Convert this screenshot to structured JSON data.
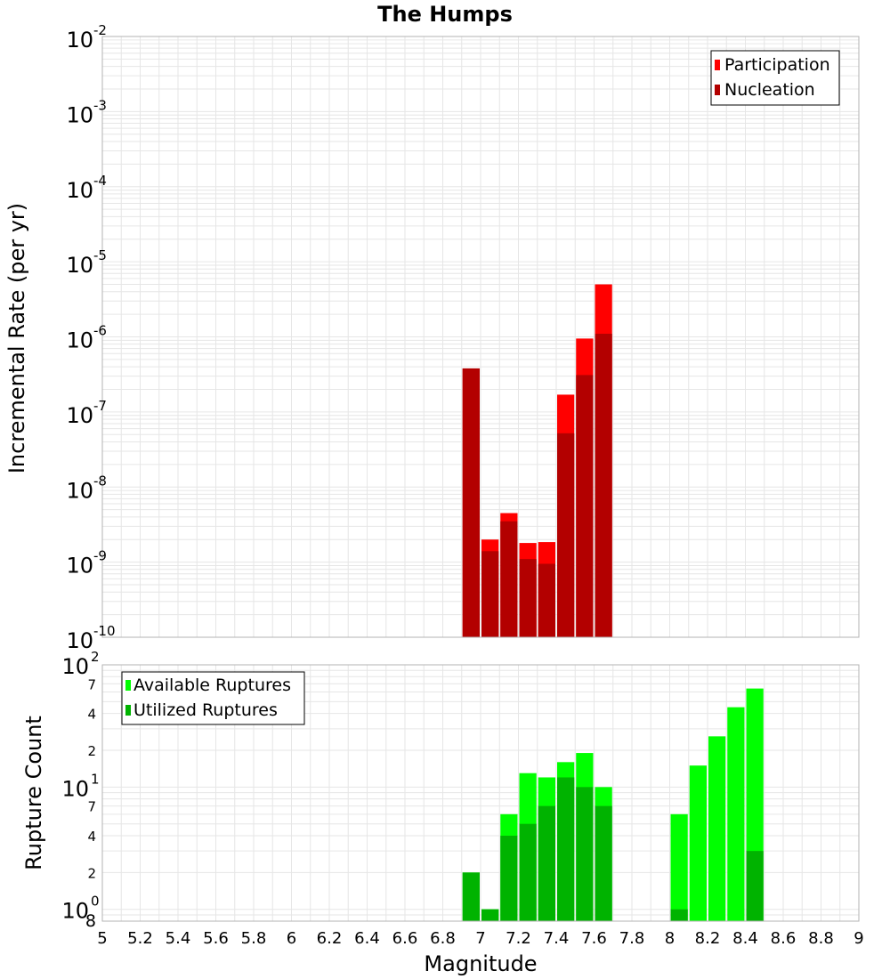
{
  "title": "The Humps",
  "xlabel": "Magnitude",
  "x_ticks": [
    "5",
    "5.2",
    "5.4",
    "5.6",
    "5.8",
    "6",
    "6.2",
    "6.4",
    "6.6",
    "6.8",
    "7",
    "7.2",
    "7.4",
    "7.6",
    "7.8",
    "8",
    "8.2",
    "8.4",
    "8.6",
    "8.8",
    "9"
  ],
  "colors": {
    "participation": "#ff0000",
    "nucleation": "#b30000",
    "available": "#00ff00",
    "utilized": "#00b300",
    "grid": "#e6e6e6",
    "frame": "#b3b3b3"
  },
  "chart_data": [
    {
      "type": "bar",
      "ylabel": "Incremental Rate (per yr)",
      "yscale": "log",
      "ylim": [
        1e-10,
        0.01
      ],
      "y_ticks": [
        {
          "base": "10",
          "exp": "-10"
        },
        {
          "base": "10",
          "exp": "-9"
        },
        {
          "base": "10",
          "exp": "-8"
        },
        {
          "base": "10",
          "exp": "-7"
        },
        {
          "base": "10",
          "exp": "-6"
        },
        {
          "base": "10",
          "exp": "-5"
        },
        {
          "base": "10",
          "exp": "-4"
        },
        {
          "base": "10",
          "exp": "-3"
        },
        {
          "base": "10",
          "exp": "-2"
        }
      ],
      "xlim": [
        5,
        9
      ],
      "x": [
        6.95,
        7.05,
        7.15,
        7.25,
        7.35,
        7.45,
        7.55,
        7.65
      ],
      "series": [
        {
          "name": "Participation",
          "color": "#ff0000",
          "values": [
            3.8e-07,
            2e-09,
            4.5e-09,
            1.8e-09,
            1.85e-09,
            1.7e-07,
            9.5e-07,
            5e-06
          ]
        },
        {
          "name": "Nucleation",
          "color": "#b30000",
          "values": [
            3.8e-07,
            1.4e-09,
            3.5e-09,
            1.1e-09,
            9.5e-10,
            5.2e-08,
            3.1e-07,
            1.1e-06
          ]
        }
      ],
      "legend": "top-right",
      "grid": true
    },
    {
      "type": "bar",
      "ylabel": "Rupture Count",
      "yscale": "log",
      "ylim": [
        0.8,
        100
      ],
      "y_ticks": [
        {
          "value": 1,
          "base": "10",
          "exp": "0"
        },
        {
          "value": 2,
          "label": "2"
        },
        {
          "value": 4,
          "label": "4"
        },
        {
          "value": 7,
          "label": "7"
        },
        {
          "value": 10,
          "base": "10",
          "exp": "1"
        },
        {
          "value": 20,
          "label": "2"
        },
        {
          "value": 40,
          "label": "4"
        },
        {
          "value": 70,
          "label": "7"
        },
        {
          "value": 100,
          "base": "10",
          "exp": "2"
        }
      ],
      "y_min_label": "8",
      "xlim": [
        5,
        9
      ],
      "x": [
        6.95,
        7.05,
        7.15,
        7.25,
        7.35,
        7.45,
        7.55,
        7.65,
        8.05,
        8.15,
        8.25,
        8.35,
        8.45
      ],
      "series": [
        {
          "name": "Available Ruptures",
          "color": "#00ff00",
          "values": [
            2,
            1,
            6,
            13,
            12,
            16,
            19,
            10,
            6,
            15,
            26,
            45,
            64
          ]
        },
        {
          "name": "Utilized Ruptures",
          "color": "#00b300",
          "values": [
            2,
            1,
            4,
            5,
            7,
            12,
            10,
            7,
            1,
            0,
            0,
            0,
            3
          ]
        }
      ],
      "legend": "top-left",
      "grid": true
    }
  ]
}
